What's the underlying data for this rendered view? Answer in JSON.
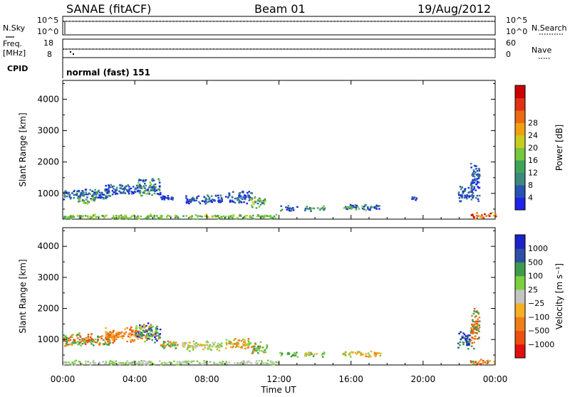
{
  "header": {
    "station": "SANAE (fitACF)",
    "beam": "Beam 01",
    "date": "19/Aug/2012"
  },
  "strips": {
    "nsky": {
      "left_label": "N.Sky",
      "left_ticks": [
        "10^5",
        "10^0"
      ],
      "right_label": "N.Search",
      "right_ticks": [
        "10^5",
        "10^0"
      ]
    },
    "freq": {
      "left_label_1": "Freq.",
      "left_label_2": "[MHz]",
      "left_ticks": [
        "18",
        "8"
      ],
      "right_label": "Nave",
      "right_ticks": [
        "60",
        "0"
      ]
    },
    "cpid": {
      "label": "CPID",
      "value": "normal (fast) 151"
    }
  },
  "colors": {
    "power": [
      "#1f24e6",
      "#2653b4",
      "#3c8a7e",
      "#3fa35a",
      "#76c83c",
      "#c8cc1e",
      "#f0a010",
      "#ec6a12",
      "#e13014",
      "#cc0000"
    ],
    "velocity": [
      "#e01010",
      "#ec5010",
      "#f07e18",
      "#f5b024",
      "#c4c4c4",
      "#7cd040",
      "#3e9a4c",
      "#2f4ea6",
      "#1b22c8"
    ]
  },
  "chart_data": [
    {
      "type": "heatmap",
      "name": "power",
      "ylabel": "Slant Range [km]",
      "yticks": [
        1000,
        2000,
        3000,
        4000
      ],
      "ylim": [
        180,
        4600
      ],
      "xlim": [
        0,
        24
      ],
      "xticks": [
        "00:00",
        "04:00",
        "08:00",
        "12:00",
        "16:00",
        "20:00",
        "00:00"
      ],
      "xlabel": "Time UT",
      "colorbar": {
        "label": "Power [dB]",
        "ticks": [
          "4",
          "8",
          "12",
          "16",
          "20",
          "24",
          "28"
        ]
      },
      "patches": [
        {
          "t0": 0.0,
          "t1": 2.6,
          "r0": 800,
          "r1": 1200,
          "levels": [
            0,
            1,
            1,
            2,
            3
          ]
        },
        {
          "t0": 0.8,
          "t1": 1.8,
          "r0": 680,
          "r1": 900,
          "levels": [
            2,
            3,
            4,
            5
          ]
        },
        {
          "t0": 2.3,
          "t1": 4.3,
          "r0": 950,
          "r1": 1350,
          "levels": [
            0,
            1,
            1,
            2
          ]
        },
        {
          "t0": 4.1,
          "t1": 5.4,
          "r0": 900,
          "r1": 1550,
          "levels": [
            0,
            1,
            2,
            3,
            4
          ]
        },
        {
          "t0": 5.4,
          "t1": 6.2,
          "r0": 750,
          "r1": 1000,
          "levels": [
            0,
            1
          ]
        },
        {
          "t0": 6.8,
          "t1": 8.8,
          "r0": 650,
          "r1": 1000,
          "levels": [
            0,
            1,
            2
          ]
        },
        {
          "t0": 9.0,
          "t1": 10.5,
          "r0": 700,
          "r1": 1100,
          "levels": [
            0,
            1,
            2
          ]
        },
        {
          "t0": 10.4,
          "t1": 11.2,
          "r0": 550,
          "r1": 950,
          "levels": [
            1,
            2,
            3,
            4,
            5
          ]
        },
        {
          "t0": 12.0,
          "t1": 13.0,
          "r0": 450,
          "r1": 650,
          "levels": [
            0,
            1,
            3
          ]
        },
        {
          "t0": 13.4,
          "t1": 14.5,
          "r0": 450,
          "r1": 650,
          "levels": [
            1,
            2,
            3,
            4
          ]
        },
        {
          "t0": 15.5,
          "t1": 17.6,
          "r0": 460,
          "r1": 680,
          "levels": [
            0,
            1,
            3,
            4
          ]
        },
        {
          "t0": 19.3,
          "t1": 19.6,
          "r0": 780,
          "r1": 950,
          "levels": [
            0,
            1
          ]
        },
        {
          "t0": 21.9,
          "t1": 22.6,
          "r0": 700,
          "r1": 1300,
          "levels": [
            0,
            1,
            2
          ]
        },
        {
          "t0": 22.6,
          "t1": 23.1,
          "r0": 700,
          "r1": 2100,
          "levels": [
            0,
            1,
            2
          ]
        },
        {
          "t0": 22.6,
          "t1": 24.0,
          "r0": 200,
          "r1": 420,
          "levels": [
            5,
            6,
            7,
            8,
            9
          ]
        },
        {
          "t0": 0.0,
          "t1": 12.0,
          "r0": 200,
          "r1": 360,
          "levels": [
            3,
            4,
            5
          ]
        }
      ]
    },
    {
      "type": "heatmap",
      "name": "velocity",
      "ylabel": "Slant Range [km]",
      "yticks": [
        1000,
        2000,
        3000,
        4000
      ],
      "ylim": [
        180,
        4600
      ],
      "xlim": [
        0,
        24
      ],
      "xticks": [
        "00:00",
        "04:00",
        "08:00",
        "12:00",
        "16:00",
        "20:00",
        "00:00"
      ],
      "xlabel": "Time UT",
      "colorbar": {
        "label": "Velocity [m s⁻¹]",
        "ticks": [
          "1000",
          "500",
          "100",
          "25",
          "−25",
          "−100",
          "−500",
          "−1000"
        ]
      },
      "patches": [
        {
          "t0": 0.0,
          "t1": 2.6,
          "r0": 750,
          "r1": 1250,
          "levels": [
            1,
            2,
            5,
            6
          ]
        },
        {
          "t0": 2.3,
          "t1": 4.3,
          "r0": 900,
          "r1": 1450,
          "levels": [
            1,
            2,
            3
          ]
        },
        {
          "t0": 4.0,
          "t1": 5.4,
          "r0": 900,
          "r1": 1600,
          "levels": [
            2,
            5,
            6,
            7,
            8
          ]
        },
        {
          "t0": 5.4,
          "t1": 6.4,
          "r0": 700,
          "r1": 1000,
          "levels": [
            2,
            5,
            6
          ]
        },
        {
          "t0": 6.6,
          "t1": 8.8,
          "r0": 650,
          "r1": 1000,
          "levels": [
            4,
            5,
            3
          ]
        },
        {
          "t0": 9.0,
          "t1": 10.5,
          "r0": 700,
          "r1": 1100,
          "levels": [
            3,
            5,
            2
          ]
        },
        {
          "t0": 10.4,
          "t1": 11.3,
          "r0": 550,
          "r1": 950,
          "levels": [
            5,
            6,
            2
          ]
        },
        {
          "t0": 12.0,
          "t1": 13.0,
          "r0": 450,
          "r1": 650,
          "levels": [
            5,
            6
          ]
        },
        {
          "t0": 13.4,
          "t1": 14.5,
          "r0": 450,
          "r1": 650,
          "levels": [
            5,
            3,
            6
          ]
        },
        {
          "t0": 15.5,
          "t1": 17.6,
          "r0": 460,
          "r1": 680,
          "levels": [
            3,
            2,
            5
          ]
        },
        {
          "t0": 21.9,
          "t1": 22.6,
          "r0": 700,
          "r1": 1300,
          "levels": [
            7,
            8,
            6
          ]
        },
        {
          "t0": 22.6,
          "t1": 23.1,
          "r0": 700,
          "r1": 2100,
          "levels": [
            1,
            2,
            6
          ]
        },
        {
          "t0": 22.6,
          "t1": 24.0,
          "r0": 200,
          "r1": 420,
          "levels": [
            1,
            2,
            3,
            6
          ]
        },
        {
          "t0": 0.0,
          "t1": 12.0,
          "r0": 200,
          "r1": 360,
          "levels": [
            4,
            5
          ]
        }
      ]
    }
  ]
}
